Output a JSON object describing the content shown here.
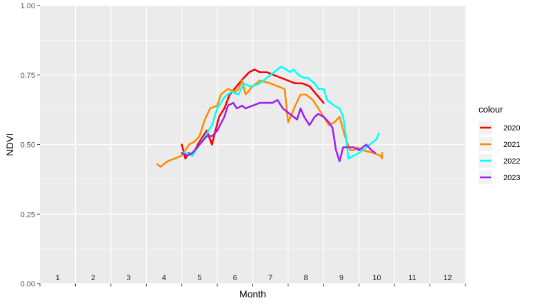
{
  "chart_data": {
    "type": "line",
    "xlabel": "Month",
    "ylabel": "NDVI",
    "xlim": [
      1,
      13
    ],
    "ylim": [
      0,
      1
    ],
    "y_ticks": [
      "0.00",
      "0.25",
      "0.50",
      "0.75",
      "1.00"
    ],
    "y_tick_values": [
      0,
      0.25,
      0.5,
      0.75,
      1.0
    ],
    "month_labels": [
      "1",
      "2",
      "3",
      "4",
      "5",
      "6",
      "7",
      "8",
      "9",
      "10",
      "11",
      "12"
    ],
    "grid": true,
    "legend": {
      "title": "colour",
      "position": "right"
    },
    "series": [
      {
        "name": "2020",
        "color": "#ff0000",
        "x": [
          5.0,
          5.1,
          5.2,
          5.3,
          5.45,
          5.55,
          5.7,
          5.85,
          5.95,
          6.05,
          6.2,
          6.35,
          6.55,
          6.75,
          6.9,
          7.05,
          7.2,
          7.4,
          7.6,
          7.8,
          8.0,
          8.2,
          8.4,
          8.6,
          8.8,
          9.0
        ],
        "y": [
          0.5,
          0.45,
          0.47,
          0.46,
          0.5,
          0.52,
          0.55,
          0.5,
          0.55,
          0.6,
          0.63,
          0.68,
          0.71,
          0.74,
          0.76,
          0.77,
          0.76,
          0.76,
          0.75,
          0.74,
          0.73,
          0.72,
          0.72,
          0.71,
          0.68,
          0.65
        ]
      },
      {
        "name": "2021",
        "color": "#ff8c00",
        "x": [
          4.3,
          4.4,
          4.6,
          4.8,
          5.0,
          5.2,
          5.35,
          5.5,
          5.65,
          5.8,
          6.0,
          6.1,
          6.3,
          6.5,
          6.6,
          6.7,
          6.8,
          7.0,
          7.2,
          7.5,
          7.7,
          7.9,
          8.0,
          8.2,
          8.35,
          8.5,
          8.7,
          8.85,
          9.0,
          9.15,
          9.3,
          9.45,
          9.6,
          9.75,
          9.85,
          9.95,
          10.1,
          10.4,
          10.6,
          10.65,
          10.65
        ],
        "y": [
          0.43,
          0.42,
          0.44,
          0.45,
          0.46,
          0.5,
          0.51,
          0.53,
          0.59,
          0.63,
          0.64,
          0.68,
          0.7,
          0.69,
          0.7,
          0.73,
          0.68,
          0.71,
          0.73,
          0.72,
          0.71,
          0.7,
          0.58,
          0.64,
          0.68,
          0.68,
          0.66,
          0.63,
          0.6,
          0.57,
          0.58,
          0.6,
          0.53,
          0.48,
          0.48,
          0.49,
          0.48,
          0.47,
          0.46,
          0.45,
          0.47
        ]
      },
      {
        "name": "2022",
        "color": "#00ffff",
        "x": [
          5.0,
          5.1,
          5.3,
          5.5,
          5.7,
          5.85,
          6.0,
          6.2,
          6.4,
          6.6,
          6.75,
          6.9,
          7.0,
          7.2,
          7.4,
          7.6,
          7.8,
          7.95,
          8.05,
          8.15,
          8.3,
          8.45,
          8.55,
          8.75,
          8.85,
          9.0,
          9.1,
          9.2,
          9.3,
          9.45,
          9.55,
          9.6,
          9.7,
          9.85,
          10.0,
          10.2,
          10.4,
          10.5,
          10.55
        ],
        "y": [
          0.47,
          0.47,
          0.46,
          0.5,
          0.54,
          0.57,
          0.63,
          0.67,
          0.69,
          0.68,
          0.72,
          0.71,
          0.71,
          0.72,
          0.74,
          0.76,
          0.78,
          0.77,
          0.76,
          0.77,
          0.75,
          0.74,
          0.74,
          0.72,
          0.7,
          0.7,
          0.66,
          0.65,
          0.64,
          0.63,
          0.6,
          0.56,
          0.45,
          0.46,
          0.47,
          0.49,
          0.51,
          0.52,
          0.54
        ]
      },
      {
        "name": "2023",
        "color": "#a020f0",
        "x": [
          5.0,
          5.15,
          5.3,
          5.5,
          5.7,
          5.85,
          6.0,
          6.2,
          6.3,
          6.45,
          6.55,
          6.7,
          6.8,
          7.0,
          7.2,
          7.4,
          7.55,
          7.7,
          7.85,
          8.05,
          8.15,
          8.25,
          8.35,
          8.45,
          8.6,
          8.75,
          8.85,
          9.0,
          9.15,
          9.25,
          9.35,
          9.45,
          9.55,
          9.7,
          9.85,
          10.0,
          10.1,
          10.2,
          10.35,
          10.45
        ],
        "y": [
          0.47,
          0.46,
          0.47,
          0.5,
          0.53,
          0.53,
          0.55,
          0.6,
          0.64,
          0.65,
          0.63,
          0.64,
          0.63,
          0.64,
          0.65,
          0.65,
          0.65,
          0.66,
          0.63,
          0.61,
          0.6,
          0.59,
          0.63,
          0.6,
          0.57,
          0.6,
          0.61,
          0.6,
          0.58,
          0.56,
          0.48,
          0.44,
          0.49,
          0.49,
          0.49,
          0.48,
          0.49,
          0.5,
          0.48,
          0.47
        ]
      }
    ]
  }
}
